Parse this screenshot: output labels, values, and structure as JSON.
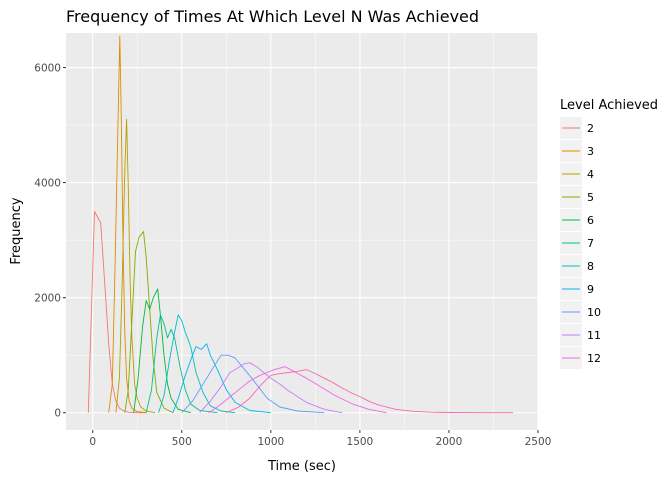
{
  "chart_data": {
    "type": "line",
    "title": "Frequency of Times At Which Level N Was Achieved",
    "xlabel": "Time (sec)",
    "ylabel": "Frequency",
    "xlim": [
      -150,
      2500
    ],
    "ylim": [
      -300,
      6600
    ],
    "x_ticks": [
      0,
      500,
      1000,
      1500,
      2000,
      2500
    ],
    "y_ticks": [
      0,
      2000,
      4000,
      6000
    ],
    "grid": true,
    "legend": {
      "title": "Level Achieved",
      "position": "right"
    },
    "series": [
      {
        "name": "2",
        "color": "#F8766D",
        "x": [
          -25,
          10,
          45,
          60,
          90,
          110,
          130,
          150,
          175,
          200,
          240,
          300
        ],
        "y": [
          0,
          3500,
          3300,
          2600,
          1200,
          500,
          200,
          80,
          30,
          10,
          0,
          0
        ]
      },
      {
        "name": "3",
        "color": "#DE8C00",
        "x": [
          90,
          110,
          125,
          140,
          152,
          160,
          170,
          180,
          190,
          205,
          220,
          250,
          300
        ],
        "y": [
          0,
          500,
          2500,
          4800,
          6550,
          5200,
          3000,
          1400,
          600,
          200,
          80,
          20,
          0
        ]
      },
      {
        "name": "4",
        "color": "#B79F00",
        "x": [
          130,
          150,
          165,
          180,
          190,
          200,
          210,
          220,
          235,
          250,
          270,
          300,
          350
        ],
        "y": [
          0,
          600,
          2200,
          4200,
          5100,
          3900,
          2300,
          1300,
          500,
          250,
          100,
          30,
          0
        ]
      },
      {
        "name": "5",
        "color": "#7CAE00",
        "x": [
          180,
          200,
          220,
          240,
          260,
          285,
          300,
          320,
          340,
          360,
          400,
          450
        ],
        "y": [
          0,
          400,
          1600,
          2800,
          3050,
          3150,
          2700,
          1800,
          900,
          350,
          80,
          0
        ]
      },
      {
        "name": "6",
        "color": "#00BA38",
        "x": [
          230,
          255,
          280,
          300,
          320,
          340,
          365,
          380,
          400,
          420,
          440,
          480,
          550
        ],
        "y": [
          0,
          600,
          1500,
          1950,
          1800,
          2000,
          2150,
          1700,
          1000,
          500,
          250,
          60,
          0
        ]
      },
      {
        "name": "7",
        "color": "#00C08B",
        "x": [
          300,
          330,
          360,
          380,
          400,
          420,
          440,
          460,
          490,
          520,
          550,
          600,
          700
        ],
        "y": [
          0,
          400,
          1300,
          1700,
          1550,
          1300,
          1450,
          1300,
          800,
          400,
          150,
          40,
          0
        ]
      },
      {
        "name": "8",
        "color": "#00BFC4",
        "x": [
          370,
          400,
          430,
          460,
          480,
          500,
          520,
          550,
          580,
          620,
          660,
          720,
          800
        ],
        "y": [
          0,
          300,
          900,
          1400,
          1700,
          1600,
          1400,
          1150,
          700,
          350,
          120,
          30,
          0
        ]
      },
      {
        "name": "9",
        "color": "#00B4F0",
        "x": [
          450,
          480,
          520,
          560,
          580,
          610,
          640,
          660,
          700,
          750,
          800,
          880,
          1000
        ],
        "y": [
          0,
          250,
          650,
          1000,
          1150,
          1100,
          1200,
          1000,
          750,
          400,
          180,
          40,
          0
        ]
      },
      {
        "name": "10",
        "color": "#619CFF",
        "x": [
          500,
          560,
          620,
          680,
          720,
          760,
          800,
          840,
          880,
          930,
          980,
          1050,
          1150,
          1300
        ],
        "y": [
          0,
          200,
          500,
          800,
          1000,
          1000,
          950,
          800,
          650,
          450,
          250,
          100,
          30,
          0
        ]
      },
      {
        "name": "11",
        "color": "#C77CFF",
        "x": [
          600,
          660,
          720,
          770,
          800,
          850,
          880,
          920,
          960,
          1000,
          1050,
          1100,
          1200,
          1300,
          1400
        ],
        "y": [
          0,
          200,
          450,
          700,
          750,
          850,
          870,
          800,
          700,
          600,
          500,
          380,
          180,
          60,
          0
        ]
      },
      {
        "name": "12",
        "color": "#F564E3",
        "x": [
          650,
          700,
          760,
          820,
          880,
          940,
          980,
          1020,
          1080,
          1140,
          1200,
          1280,
          1360,
          1460,
          1550,
          1650
        ],
        "y": [
          0,
          100,
          250,
          400,
          550,
          650,
          700,
          750,
          800,
          700,
          600,
          450,
          300,
          150,
          60,
          0
        ]
      },
      {
        "name": "",
        "color": "#FF64B0",
        "x": [
          750,
          820,
          880,
          950,
          1000,
          1050,
          1100,
          1150,
          1200,
          1250,
          1300,
          1350,
          1400,
          1450,
          1500,
          1550,
          1600,
          1700,
          1800,
          1900,
          2000,
          2100,
          2200,
          2360
        ],
        "y": [
          0,
          100,
          250,
          500,
          650,
          680,
          700,
          720,
          750,
          680,
          600,
          520,
          430,
          350,
          280,
          200,
          140,
          60,
          25,
          10,
          5,
          2,
          0,
          0
        ]
      }
    ]
  }
}
